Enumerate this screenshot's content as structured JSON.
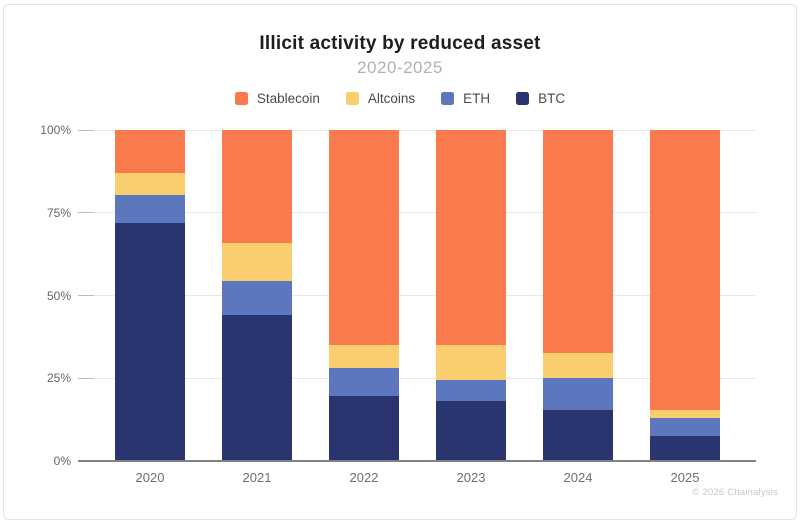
{
  "header": {
    "title": "Illicit activity by reduced asset",
    "subtitle": "2020-2025"
  },
  "chart_data": {
    "type": "bar",
    "stacked": true,
    "unit": "percent",
    "title": "Illicit activity by reduced asset",
    "subtitle": "2020-2025",
    "categories": [
      "2020",
      "2021",
      "2022",
      "2023",
      "2024",
      "2025"
    ],
    "series": [
      {
        "name": "BTC",
        "color": "#2A356F",
        "values": [
          72,
          44,
          19.5,
          18,
          15.5,
          7.5
        ]
      },
      {
        "name": "ETH",
        "color": "#5C77BE",
        "values": [
          8.5,
          10.5,
          8.5,
          6.5,
          9.5,
          5.5
        ]
      },
      {
        "name": "Altcoins",
        "color": "#FACD6E",
        "values": [
          6.5,
          11.5,
          7,
          10.5,
          7.5,
          2.5
        ]
      },
      {
        "name": "Stablecoin",
        "color": "#F87A4D",
        "values": [
          13,
          34,
          65,
          65,
          67.5,
          84.5
        ]
      }
    ],
    "stack_order_bottom_to_top": [
      "BTC",
      "ETH",
      "Altcoins",
      "Stablecoin"
    ],
    "legend_order": [
      "Stablecoin",
      "Altcoins",
      "ETH",
      "BTC"
    ],
    "legend_position": "top",
    "y_ticks": [
      "0%",
      "25%",
      "50%",
      "75%",
      "100%"
    ],
    "ylim": [
      0,
      100
    ],
    "grid": true
  },
  "colors": {
    "stablecoin": "#F87A4D",
    "altcoins": "#FACD6E",
    "eth": "#5C77BE",
    "btc": "#2A356F",
    "gridline": "#e8e8e8",
    "axis": "#828282"
  },
  "footer": {
    "copyright": "© 2026 Chainalysis"
  }
}
